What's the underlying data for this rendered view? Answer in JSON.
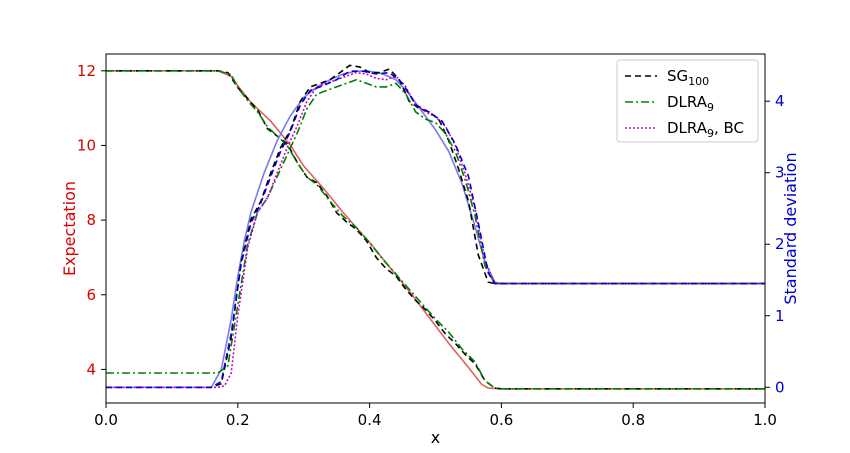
{
  "chart_data": {
    "type": "line",
    "xlabel": "x",
    "ylabel_left": "Expectation",
    "ylabel_right": "Standard deviation",
    "xlim": [
      0,
      1
    ],
    "ylim_left": [
      3.1,
      12.45
    ],
    "ylim_right": [
      -0.22,
      4.66
    ],
    "xticks": [
      "0.0",
      "0.2",
      "0.4",
      "0.6",
      "0.8",
      "1.0"
    ],
    "yticks_left": [
      "4",
      "6",
      "8",
      "10",
      "12"
    ],
    "yticks_right": [
      "0",
      "1",
      "2",
      "3",
      "4"
    ],
    "colors": {
      "left_axis": "#dd0000",
      "right_axis": "#0000cc"
    },
    "legend": {
      "position": "top-right",
      "entries": [
        {
          "label": "SG",
          "sub": "100",
          "color": "#000000",
          "dash": "6,4"
        },
        {
          "label": "DLRA",
          "sub": "9",
          "suffix": "",
          "color": "#008000",
          "dash": "8,3,2,3"
        },
        {
          "label": "DLRA",
          "sub": "9",
          "suffix": ", BC",
          "color": "#cc00cc",
          "dash": "2,2"
        }
      ]
    },
    "series": [
      {
        "axis": "left",
        "color": "#e06060",
        "dash": "",
        "x": [
          0,
          0.17,
          0.19,
          0.2,
          0.22,
          0.25,
          0.28,
          0.3,
          0.33,
          0.36,
          0.38,
          0.4,
          0.43,
          0.46,
          0.49,
          0.52,
          0.55,
          0.57,
          0.58,
          0.6,
          1.0
        ],
        "y": [
          12,
          12,
          11.85,
          11.6,
          11.15,
          10.65,
          10,
          9.45,
          8.85,
          8.2,
          7.8,
          7.4,
          6.75,
          6.1,
          5.4,
          4.7,
          4.05,
          3.6,
          3.5,
          3.48,
          3.48
        ]
      },
      {
        "axis": "left",
        "color": "#000000",
        "dash": "6,4",
        "x": [
          0,
          0.17,
          0.185,
          0.2,
          0.215,
          0.23,
          0.245,
          0.26,
          0.275,
          0.29,
          0.305,
          0.32,
          0.335,
          0.35,
          0.365,
          0.38,
          0.395,
          0.41,
          0.425,
          0.44,
          0.455,
          0.47,
          0.485,
          0.5,
          0.515,
          0.53,
          0.545,
          0.56,
          0.575,
          0.59,
          0.6,
          1.0
        ],
        "y": [
          12,
          12,
          11.95,
          11.55,
          11.25,
          10.95,
          10.45,
          10.25,
          10.05,
          9.55,
          9.15,
          9.0,
          8.65,
          8.2,
          7.95,
          7.75,
          7.45,
          7.0,
          6.7,
          6.5,
          6.15,
          5.85,
          5.6,
          5.3,
          4.95,
          4.7,
          4.4,
          4.15,
          3.7,
          3.5,
          3.48,
          3.48
        ]
      },
      {
        "axis": "left",
        "color": "#008000",
        "dash": "8,3,2,3",
        "x": [
          0,
          0.17,
          0.19,
          0.2,
          0.215,
          0.23,
          0.245,
          0.26,
          0.275,
          0.29,
          0.305,
          0.32,
          0.34,
          0.36,
          0.38,
          0.4,
          0.42,
          0.44,
          0.46,
          0.48,
          0.5,
          0.52,
          0.54,
          0.56,
          0.575,
          0.59,
          0.6,
          1.0
        ],
        "y": [
          12,
          12,
          11.9,
          11.55,
          11.2,
          10.9,
          10.5,
          10.25,
          10.0,
          9.55,
          9.15,
          8.95,
          8.5,
          8.1,
          7.8,
          7.4,
          6.95,
          6.55,
          6.15,
          5.75,
          5.35,
          5.0,
          4.55,
          4.2,
          3.7,
          3.5,
          3.48,
          3.48
        ]
      },
      {
        "axis": "right",
        "color": "#7b7be8",
        "dash": "",
        "x": [
          0,
          0.16,
          0.175,
          0.19,
          0.2,
          0.21,
          0.22,
          0.24,
          0.26,
          0.28,
          0.3,
          0.32,
          0.34,
          0.36,
          0.38,
          0.4,
          0.42,
          0.44,
          0.46,
          0.48,
          0.5,
          0.52,
          0.54,
          0.56,
          0.575,
          0.59,
          0.6,
          1.0
        ],
        "y": [
          0,
          0,
          0.25,
          0.95,
          1.55,
          2.05,
          2.45,
          3.0,
          3.45,
          3.8,
          4.05,
          4.2,
          4.3,
          4.38,
          4.42,
          4.42,
          4.38,
          4.3,
          4.1,
          3.85,
          3.6,
          3.3,
          2.85,
          2.25,
          1.75,
          1.47,
          1.45,
          1.45
        ]
      },
      {
        "axis": "right",
        "color": "#000000",
        "dash": "6,4",
        "x": [
          0,
          0.16,
          0.175,
          0.19,
          0.205,
          0.22,
          0.235,
          0.25,
          0.265,
          0.28,
          0.295,
          0.31,
          0.325,
          0.34,
          0.355,
          0.37,
          0.385,
          0.4,
          0.415,
          0.43,
          0.445,
          0.46,
          0.475,
          0.49,
          0.505,
          0.52,
          0.535,
          0.55,
          0.565,
          0.58,
          0.59,
          1.0
        ],
        "y": [
          0,
          0,
          0.05,
          0.7,
          1.75,
          2.35,
          2.6,
          3.0,
          3.35,
          3.6,
          4.0,
          4.2,
          4.25,
          4.3,
          4.4,
          4.5,
          4.48,
          4.4,
          4.4,
          4.45,
          4.3,
          4.0,
          3.9,
          3.85,
          3.75,
          3.45,
          3.05,
          2.6,
          1.85,
          1.47,
          1.45,
          1.45
        ]
      },
      {
        "axis": "right",
        "color": "#008000",
        "dash": "8,3,2,3",
        "x": [
          0,
          0.17,
          0.185,
          0.2,
          0.215,
          0.23,
          0.245,
          0.26,
          0.275,
          0.29,
          0.305,
          0.32,
          0.335,
          0.35,
          0.365,
          0.38,
          0.395,
          0.41,
          0.425,
          0.44,
          0.455,
          0.47,
          0.485,
          0.5,
          0.515,
          0.53,
          0.545,
          0.56,
          0.575,
          0.59,
          1.0
        ],
        "y": [
          0.2,
          0.2,
          0.3,
          1.15,
          2.0,
          2.45,
          2.65,
          2.95,
          3.25,
          3.55,
          3.9,
          4.1,
          4.15,
          4.2,
          4.25,
          4.3,
          4.25,
          4.2,
          4.2,
          4.25,
          4.1,
          3.85,
          3.75,
          3.7,
          3.55,
          3.3,
          2.9,
          2.4,
          1.7,
          1.45,
          1.45
        ]
      },
      {
        "axis": "right",
        "color": "#cc00cc",
        "dash": "2,2",
        "x": [
          0,
          0.17,
          0.18,
          0.19,
          0.2,
          0.215,
          0.23,
          0.245,
          0.26,
          0.275,
          0.29,
          0.305,
          0.32,
          0.335,
          0.35,
          0.365,
          0.38,
          0.395,
          0.41,
          0.425,
          0.44,
          0.455,
          0.47,
          0.485,
          0.5,
          0.515,
          0.53,
          0.545,
          0.56,
          0.575,
          0.59,
          1.0
        ],
        "y": [
          0,
          0,
          0.02,
          0.2,
          1.0,
          1.95,
          2.45,
          2.65,
          3.0,
          3.35,
          3.65,
          4.0,
          4.2,
          4.25,
          4.3,
          4.35,
          4.4,
          4.38,
          4.32,
          4.3,
          4.35,
          4.2,
          3.95,
          3.85,
          3.78,
          3.65,
          3.38,
          2.98,
          2.5,
          1.78,
          1.45,
          1.45
        ]
      },
      {
        "axis": "right",
        "color": "#0000cc",
        "dash": "6,4",
        "x": [
          0,
          0.16,
          0.175,
          0.19,
          0.205,
          0.22,
          0.235,
          0.25,
          0.265,
          0.28,
          0.295,
          0.31,
          0.33,
          0.35,
          0.37,
          0.39,
          0.41,
          0.43,
          0.45,
          0.47,
          0.49,
          0.51,
          0.53,
          0.55,
          0.565,
          0.58,
          0.59,
          1.0
        ],
        "y": [
          0,
          0,
          0.08,
          0.75,
          1.72,
          2.3,
          2.58,
          2.95,
          3.3,
          3.58,
          3.95,
          4.15,
          4.22,
          4.3,
          4.42,
          4.42,
          4.38,
          4.4,
          4.25,
          3.95,
          3.85,
          3.72,
          3.4,
          2.95,
          2.3,
          1.6,
          1.45,
          1.45
        ]
      }
    ]
  }
}
